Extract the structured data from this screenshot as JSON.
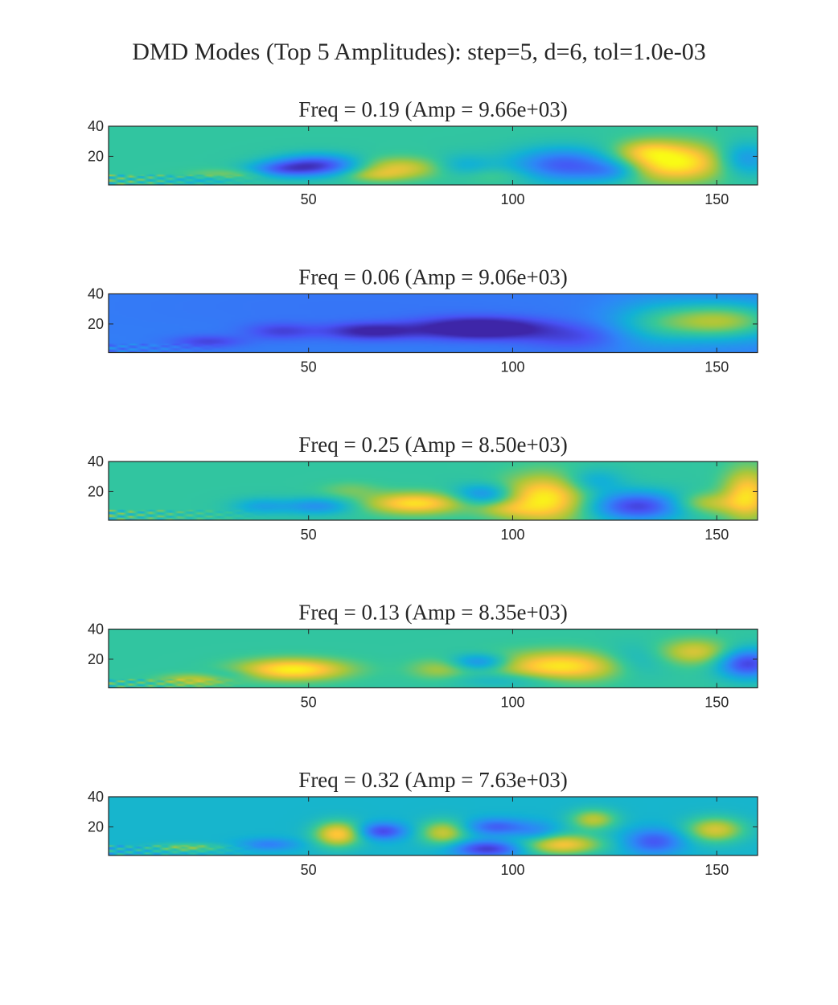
{
  "figure": {
    "title": "DMD Modes (Top 5 Amplitudes): step=5, d=6, tol=1.0e-03"
  },
  "chart_data": [
    {
      "type": "heatmap",
      "title": "Freq = 0.19 (Amp = 9.66e+03)",
      "xlim": [
        1,
        160
      ],
      "ylim": [
        1,
        40
      ],
      "xticks": [
        50,
        100,
        150
      ],
      "yticks": [
        20,
        40
      ],
      "xtick_labels": [
        "50",
        "100",
        "150"
      ],
      "ytick_labels": [
        "20",
        "40"
      ],
      "colormap": "parula",
      "background": 0.55,
      "grid": false,
      "features": [
        {
          "x": 52,
          "y": 14,
          "sx": 7,
          "sy": 5,
          "v": -0.95
        },
        {
          "x": 43,
          "y": 11,
          "sx": 6,
          "sy": 4,
          "v": -0.6
        },
        {
          "x": 72,
          "y": 12,
          "sx": 7,
          "sy": 5,
          "v": 0.55
        },
        {
          "x": 66,
          "y": 7,
          "sx": 5,
          "sy": 3,
          "v": 0.3
        },
        {
          "x": 88,
          "y": 13,
          "sx": 5,
          "sy": 6,
          "v": -0.3
        },
        {
          "x": 113,
          "y": 14,
          "sx": 9,
          "sy": 8,
          "v": -0.85
        },
        {
          "x": 125,
          "y": 10,
          "sx": 5,
          "sy": 5,
          "v": -0.4
        },
        {
          "x": 140,
          "y": 16,
          "sx": 9,
          "sy": 9,
          "v": 1.0
        },
        {
          "x": 133,
          "y": 24,
          "sx": 5,
          "sy": 5,
          "v": 0.35
        },
        {
          "x": 157,
          "y": 18,
          "sx": 5,
          "sy": 8,
          "v": -0.55
        },
        {
          "x": 30,
          "y": 7,
          "sx": 7,
          "sy": 3,
          "v": 0.28
        },
        {
          "x": 25,
          "y": 4,
          "sx": 7,
          "sy": 2,
          "v": -0.3
        },
        {
          "x": 95,
          "y": 7,
          "sx": 8,
          "sy": 4,
          "v": 0.18
        }
      ],
      "noise": {
        "x_max": 40,
        "y_max": 8,
        "amp": 0.45,
        "freq": 1.3
      }
    },
    {
      "type": "heatmap",
      "title": "Freq = 0.06 (Amp = 9.06e+03)",
      "xlim": [
        1,
        160
      ],
      "ylim": [
        1,
        40
      ],
      "xticks": [
        50,
        100,
        150
      ],
      "yticks": [
        20,
        40
      ],
      "xtick_labels": [
        "50",
        "100",
        "150"
      ],
      "ytick_labels": [
        "20",
        "40"
      ],
      "colormap": "parula",
      "background": 0.26,
      "grid": false,
      "features": [
        {
          "x": 92,
          "y": 17,
          "sx": 11,
          "sy": 5,
          "v": -0.95
        },
        {
          "x": 65,
          "y": 15,
          "sx": 8,
          "sy": 4,
          "v": -0.6
        },
        {
          "x": 43,
          "y": 15,
          "sx": 6,
          "sy": 4,
          "v": -0.35
        },
        {
          "x": 25,
          "y": 8,
          "sx": 6,
          "sy": 3,
          "v": -0.35
        },
        {
          "x": 151,
          "y": 22,
          "sx": 11,
          "sy": 9,
          "v": 1.0
        },
        {
          "x": 134,
          "y": 20,
          "sx": 8,
          "sy": 12,
          "v": 0.35
        },
        {
          "x": 115,
          "y": 11,
          "sx": 9,
          "sy": 6,
          "v": -0.3
        },
        {
          "x": 60,
          "y": 32,
          "sx": 40,
          "sy": 12,
          "v": -0.05
        }
      ],
      "noise": {
        "x_max": 30,
        "y_max": 7,
        "amp": 0.3,
        "freq": 1.2
      }
    },
    {
      "type": "heatmap",
      "title": "Freq = 0.25 (Amp = 8.50e+03)",
      "xlim": [
        1,
        160
      ],
      "ylim": [
        1,
        40
      ],
      "xticks": [
        50,
        100,
        150
      ],
      "yticks": [
        20,
        40
      ],
      "xtick_labels": [
        "50",
        "100",
        "150"
      ],
      "ytick_labels": [
        "20",
        "40"
      ],
      "colormap": "parula",
      "background": 0.55,
      "grid": false,
      "features": [
        {
          "x": 76,
          "y": 12,
          "sx": 8,
          "sy": 5,
          "v": 0.85
        },
        {
          "x": 108,
          "y": 15,
          "sx": 7,
          "sy": 11,
          "v": 0.95
        },
        {
          "x": 93,
          "y": 18,
          "sx": 5,
          "sy": 5,
          "v": -0.55
        },
        {
          "x": 131,
          "y": 10,
          "sx": 8,
          "sy": 7,
          "v": -1.0
        },
        {
          "x": 120,
          "y": 27,
          "sx": 5,
          "sy": 6,
          "v": -0.35
        },
        {
          "x": 158,
          "y": 18,
          "sx": 4,
          "sy": 12,
          "v": 0.8
        },
        {
          "x": 148,
          "y": 12,
          "sx": 6,
          "sy": 5,
          "v": 0.45
        },
        {
          "x": 52,
          "y": 10,
          "sx": 6,
          "sy": 4,
          "v": -0.5
        },
        {
          "x": 38,
          "y": 10,
          "sx": 5,
          "sy": 4,
          "v": -0.35
        },
        {
          "x": 60,
          "y": 21,
          "sx": 5,
          "sy": 4,
          "v": 0.2
        },
        {
          "x": 98,
          "y": 8,
          "sx": 5,
          "sy": 4,
          "v": 0.3
        }
      ],
      "noise": {
        "x_max": 40,
        "y_max": 8,
        "amp": 0.45,
        "freq": 1.3
      }
    },
    {
      "type": "heatmap",
      "title": "Freq = 0.13 (Amp = 8.35e+03)",
      "xlim": [
        1,
        160
      ],
      "ylim": [
        1,
        40
      ],
      "xticks": [
        50,
        100,
        150
      ],
      "yticks": [
        20,
        40
      ],
      "xtick_labels": [
        "50",
        "100",
        "150"
      ],
      "ytick_labels": [
        "20",
        "40"
      ],
      "colormap": "parula",
      "background": 0.55,
      "grid": false,
      "features": [
        {
          "x": 46,
          "y": 13,
          "sx": 9,
          "sy": 5,
          "v": 0.95
        },
        {
          "x": 112,
          "y": 15,
          "sx": 11,
          "sy": 7,
          "v": 0.9
        },
        {
          "x": 145,
          "y": 25,
          "sx": 6,
          "sy": 6,
          "v": 0.55
        },
        {
          "x": 158,
          "y": 17,
          "sx": 5,
          "sy": 7,
          "v": -1.0
        },
        {
          "x": 92,
          "y": 18,
          "sx": 5,
          "sy": 4,
          "v": -0.6
        },
        {
          "x": 82,
          "y": 13,
          "sx": 5,
          "sy": 5,
          "v": 0.35
        },
        {
          "x": 100,
          "y": 6,
          "sx": 10,
          "sy": 4,
          "v": -0.3
        },
        {
          "x": 130,
          "y": 18,
          "sx": 6,
          "sy": 8,
          "v": -0.3
        },
        {
          "x": 22,
          "y": 6,
          "sx": 6,
          "sy": 3,
          "v": 0.45
        },
        {
          "x": 30,
          "y": 9,
          "sx": 5,
          "sy": 3,
          "v": -0.2
        }
      ],
      "noise": {
        "x_max": 35,
        "y_max": 7,
        "amp": 0.4,
        "freq": 1.3
      }
    },
    {
      "type": "heatmap",
      "title": "Freq = 0.32 (Amp = 7.63e+03)",
      "xlim": [
        1,
        160
      ],
      "ylim": [
        1,
        40
      ],
      "xticks": [
        50,
        100,
        150
      ],
      "yticks": [
        20,
        40
      ],
      "xtick_labels": [
        "50",
        "100",
        "150"
      ],
      "ytick_labels": [
        "20",
        "40"
      ],
      "colormap": "parula",
      "background": 0.45,
      "grid": false,
      "features": [
        {
          "x": 57,
          "y": 15,
          "sx": 4,
          "sy": 6,
          "v": 0.95
        },
        {
          "x": 68,
          "y": 17,
          "sx": 4,
          "sy": 4,
          "v": -0.75
        },
        {
          "x": 83,
          "y": 16,
          "sx": 4,
          "sy": 6,
          "v": 0.7
        },
        {
          "x": 96,
          "y": 20,
          "sx": 5,
          "sy": 4,
          "v": -0.6
        },
        {
          "x": 94,
          "y": 5,
          "sx": 6,
          "sy": 4,
          "v": -0.85
        },
        {
          "x": 112,
          "y": 8,
          "sx": 7,
          "sy": 5,
          "v": 0.9
        },
        {
          "x": 120,
          "y": 25,
          "sx": 4,
          "sy": 5,
          "v": 0.65
        },
        {
          "x": 135,
          "y": 10,
          "sx": 5,
          "sy": 6,
          "v": -0.65
        },
        {
          "x": 150,
          "y": 18,
          "sx": 5,
          "sy": 6,
          "v": 0.75
        },
        {
          "x": 106,
          "y": 16,
          "sx": 4,
          "sy": 5,
          "v": -0.35
        },
        {
          "x": 40,
          "y": 8,
          "sx": 5,
          "sy": 3,
          "v": -0.4
        },
        {
          "x": 20,
          "y": 6,
          "sx": 6,
          "sy": 2,
          "v": 0.45
        }
      ],
      "noise": {
        "x_max": 40,
        "y_max": 8,
        "amp": 0.4,
        "freq": 1.4
      }
    }
  ]
}
